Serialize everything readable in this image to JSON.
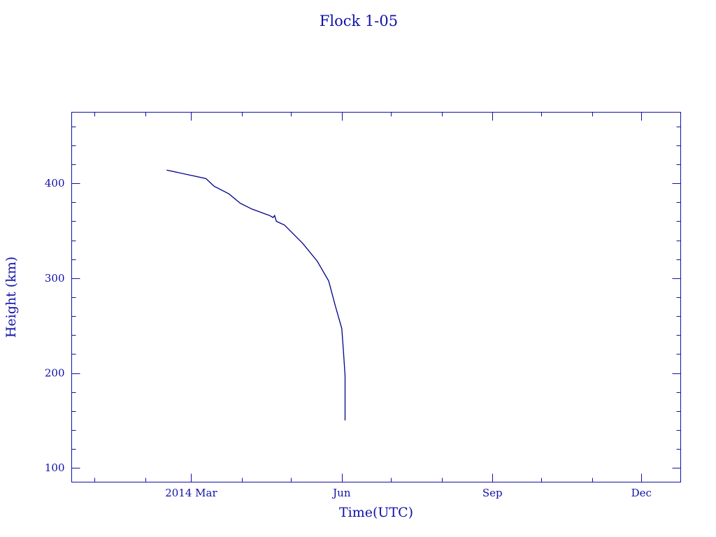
{
  "chart_data": {
    "type": "line",
    "title": "Flock 1-05",
    "xlabel": "Time(UTC)",
    "ylabel": "Height (km)",
    "xlim": [
      "2013-12-18",
      "2014-12-25"
    ],
    "ylim": [
      85,
      475
    ],
    "x_ticks": [
      {
        "date": "2014-03-01",
        "label": "2014 Mar"
      },
      {
        "date": "2014-06-01",
        "label": "Jun"
      },
      {
        "date": "2014-09-01",
        "label": "Sep"
      },
      {
        "date": "2014-12-01",
        "label": "Dec"
      }
    ],
    "y_ticks": [
      100,
      200,
      300,
      400
    ],
    "grid": false,
    "color": "#00008b",
    "series": [
      {
        "x": [
          "2014-02-14",
          "2014-03-10",
          "2014-03-15",
          "2014-03-24",
          "2014-03-31",
          "2014-04-07",
          "2014-04-18",
          "2014-04-20",
          "2014-04-21",
          "2014-04-22",
          "2014-04-27",
          "2014-05-08",
          "2014-05-17",
          "2014-05-24",
          "2014-05-28",
          "2014-06-01",
          "2014-06-02",
          "2014-06-03",
          "2014-06-03"
        ],
        "y": [
          414,
          405,
          397,
          389,
          379,
          373,
          366,
          364,
          366,
          360,
          356,
          337,
          318,
          297,
          271,
          247,
          223,
          197,
          150
        ]
      }
    ]
  }
}
